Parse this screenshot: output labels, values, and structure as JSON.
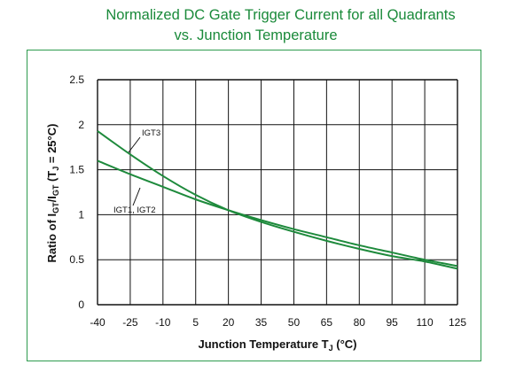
{
  "title_line1": "Normalized DC Gate Trigger Current for all Quadrants",
  "title_line2": "vs. Junction Temperature",
  "colors": {
    "title": "#1a8a3a",
    "frame": "#2e9b4e",
    "series": "#1e8a3c",
    "grid": "#111111"
  },
  "chart_data": {
    "type": "line",
    "title": "Normalized DC Gate Trigger Current for all Quadrants vs. Junction Temperature",
    "xlabel": "Junction Temperature T_J (°C)",
    "ylabel": "Ratio of I_GT/I_GT (T_J = 25°C)",
    "xlim": [
      -40,
      125
    ],
    "ylim": [
      0,
      2.5
    ],
    "x_ticks": [
      "-40",
      "-25",
      "-10",
      "5",
      "20",
      "35",
      "50",
      "65",
      "80",
      "95",
      "110",
      "125"
    ],
    "y_ticks": [
      "0",
      "0.5",
      "1",
      "1.5",
      "2",
      "2.5"
    ],
    "grid": true,
    "series": [
      {
        "name": "IGT3",
        "x": [
          -40,
          -25,
          -10,
          5,
          20,
          35,
          50,
          65,
          80,
          95,
          110,
          125
        ],
        "y": [
          1.93,
          1.67,
          1.43,
          1.22,
          1.05,
          0.92,
          0.81,
          0.71,
          0.62,
          0.54,
          0.48,
          0.4
        ]
      },
      {
        "name": "IGT1, IGT2",
        "x": [
          -40,
          -25,
          -10,
          5,
          20,
          35,
          50,
          65,
          80,
          95,
          110,
          125
        ],
        "y": [
          1.6,
          1.45,
          1.31,
          1.17,
          1.05,
          0.94,
          0.84,
          0.75,
          0.66,
          0.58,
          0.5,
          0.43
        ]
      }
    ]
  }
}
